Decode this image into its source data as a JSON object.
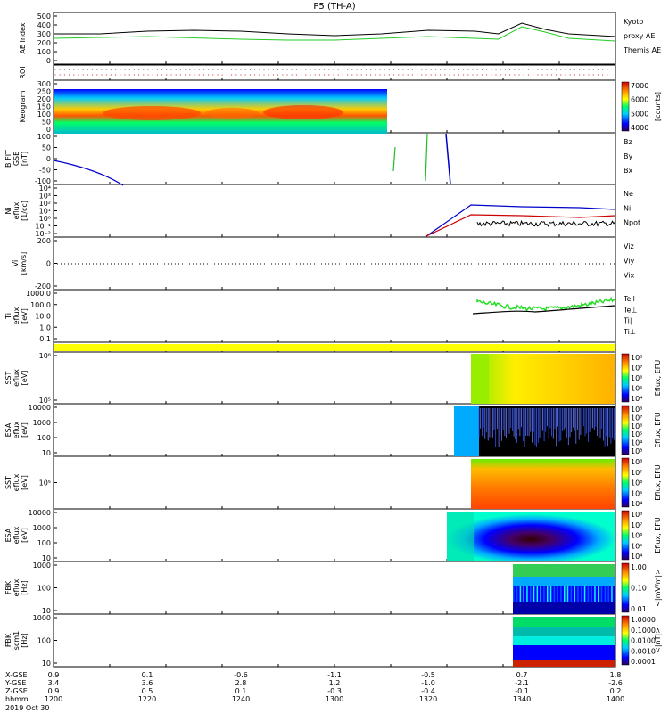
{
  "title": "P5 (TH-A)",
  "date": "2019 Oct 30",
  "x_axis": {
    "rows": [
      {
        "label": "X-GSE",
        "values": [
          "0.9",
          "0.1",
          "-0.6",
          "-1.1",
          "-0.5",
          "0.7",
          "1.8"
        ]
      },
      {
        "label": "Y-GSE",
        "values": [
          "3.4",
          "3.6",
          "2.8",
          "1.2",
          "-1.0",
          "-2.1",
          "-2.6"
        ]
      },
      {
        "label": "Z-GSE",
        "values": [
          "0.9",
          "0.5",
          "0.1",
          "-0.3",
          "-0.4",
          "-0.1",
          "0.2"
        ]
      },
      {
        "label": "hhmm",
        "values": [
          "1200",
          "1220",
          "1240",
          "1300",
          "1320",
          "1340",
          "1400"
        ]
      }
    ]
  },
  "panels": [
    {
      "ylabel": [
        "AE Index"
      ],
      "ticks": [
        "500",
        "400",
        "300",
        "200",
        "100",
        "0"
      ],
      "legend": [
        {
          "text": "Kyoto",
          "color": "#33cc33"
        },
        {
          "text": "proxy AE",
          "color": "#33cc33"
        },
        {
          "text": "Themis AE",
          "color": "#000000"
        }
      ]
    },
    {
      "ylabel": [
        "ROI"
      ],
      "ticks": [],
      "legend": []
    },
    {
      "ylabel": [
        "Keogram"
      ],
      "ticks": [
        "300",
        "250",
        "200",
        "150",
        "100",
        "50",
        "0"
      ],
      "legend": [],
      "colorbar": {
        "label": "[counts]",
        "ticks": [
          "7000",
          "6000",
          "5000",
          "4000"
        ]
      }
    },
    {
      "ylabel": [
        "B FIT",
        "GSE",
        "[nT]"
      ],
      "ticks": [
        "100",
        "50",
        "0",
        "-50",
        "-100"
      ],
      "legend": [
        {
          "text": "Bz",
          "color": "#cc0000"
        },
        {
          "text": "By",
          "color": "#33bb33"
        },
        {
          "text": "Bx",
          "color": "#0000cc"
        }
      ]
    },
    {
      "ylabel": [
        "Ni",
        "eflux",
        "[1/cc]"
      ],
      "ticks": [
        "10⁴",
        "10³",
        "10²",
        "10¹",
        "10⁰",
        "10⁻¹",
        "10⁻²"
      ],
      "legend": [
        {
          "text": "Ne",
          "color": "#cc0000"
        },
        {
          "text": "Ni",
          "color": "#000000"
        },
        {
          "text": "Npot",
          "color": "#0000aa"
        }
      ]
    },
    {
      "ylabel": [
        "Vi",
        "[km/s]"
      ],
      "ticks": [
        "200",
        "0",
        "-200"
      ],
      "legend": [
        {
          "text": "Viz",
          "color": "#cc0000"
        },
        {
          "text": "Viy",
          "color": "#33bb33"
        },
        {
          "text": "Vix",
          "color": "#0000cc"
        }
      ]
    },
    {
      "ylabel": [
        "Ti",
        "eflux",
        "[eV]"
      ],
      "ticks": [
        "1000.0",
        "100.0",
        "10.0",
        "1.0",
        "0.1"
      ],
      "legend": [
        {
          "text": "Tell",
          "color": "#000000"
        },
        {
          "text": "Te⊥",
          "color": "#cc0000"
        },
        {
          "text": "Ti∥",
          "color": "#33bb33"
        },
        {
          "text": "Ti⊥",
          "color": "#0000cc"
        }
      ]
    },
    {
      "ylabel": [],
      "ticks": [],
      "legend": []
    },
    {
      "ylabel": [
        "SST",
        "eflux",
        "[eV]"
      ],
      "ticks": [
        "10⁶",
        "10⁵"
      ],
      "legend": [],
      "colorbar": {
        "label": "Eflux, EFU",
        "ticks": [
          "10⁸",
          "10⁷",
          "10⁶",
          "10⁵",
          "10⁴"
        ]
      }
    },
    {
      "ylabel": [
        "ESA",
        "eflux",
        "[eV]"
      ],
      "ticks": [
        "10000",
        "1000",
        "100",
        "10"
      ],
      "legend": [],
      "colorbar": {
        "label": "Eflux, EFU",
        "ticks": [
          "10⁸",
          "10⁷",
          "10⁶",
          "10⁵",
          "10⁴",
          "10³"
        ]
      }
    },
    {
      "ylabel": [
        "SST",
        "eflux",
        "[eV]"
      ],
      "ticks": [
        "10⁵"
      ],
      "legend": [],
      "colorbar": {
        "label": "Eflux, EFU",
        "ticks": [
          "10⁸",
          "10⁷",
          "10⁶",
          "10⁵",
          "10⁴"
        ]
      }
    },
    {
      "ylabel": [
        "ESA",
        "eflux",
        "[eV]"
      ],
      "ticks": [
        "10000",
        "1000",
        "100",
        "10"
      ],
      "legend": [],
      "colorbar": {
        "label": "Eflux, EFU",
        "ticks": [
          "10⁸",
          "10⁷",
          "10⁶",
          "10⁵",
          "10⁴"
        ]
      }
    },
    {
      "ylabel": [
        "FBK",
        "eflux",
        "[Hz]"
      ],
      "ticks": [
        "1000",
        "100",
        "10"
      ],
      "legend": [],
      "colorbar": {
        "label": "<|mV/m|>",
        "ticks": [
          "1.00",
          "0.10",
          "0.01"
        ]
      }
    },
    {
      "ylabel": [
        "FBK",
        "scm1",
        "[Hz]"
      ],
      "ticks": [
        "1000",
        "100",
        "10"
      ],
      "legend": [],
      "colorbar": {
        "label": "<|nT|>",
        "ticks": [
          "1.0000",
          "0.1000",
          "0.0100",
          "0.0010",
          "0.0001"
        ]
      }
    }
  ],
  "chart_data": {
    "type": "line",
    "title": "P5 (TH-A)",
    "xlabel": "hhmm",
    "x_range": [
      "1200",
      "1400"
    ],
    "series": [
      {
        "name": "Themis AE",
        "x": [
          "1200",
          "1210",
          "1220",
          "1230",
          "1240",
          "1250",
          "1300",
          "1310",
          "1320",
          "1330",
          "1335",
          "1340",
          "1345",
          "1350",
          "1400"
        ],
        "values": [
          300,
          300,
          330,
          340,
          330,
          300,
          280,
          300,
          340,
          330,
          300,
          420,
          350,
          300,
          270
        ]
      },
      {
        "name": "Kyoto proxy AE",
        "x": [
          "1200",
          "1210",
          "1220",
          "1230",
          "1240",
          "1250",
          "1300",
          "1310",
          "1320",
          "1330",
          "1335",
          "1340",
          "1345",
          "1350",
          "1400"
        ],
        "values": [
          250,
          260,
          270,
          255,
          240,
          230,
          230,
          250,
          270,
          250,
          240,
          380,
          320,
          250,
          220
        ]
      }
    ]
  }
}
